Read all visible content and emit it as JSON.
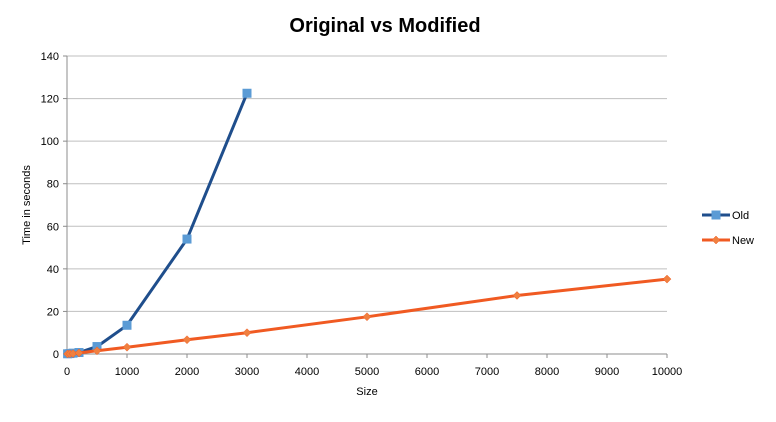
{
  "chart_data": {
    "type": "line",
    "title": "Original vs Modified",
    "xlabel": "Size",
    "ylabel": "Time in seconds",
    "xlim": [
      0,
      10000
    ],
    "ylim": [
      0,
      140
    ],
    "x_ticks": [
      0,
      1000,
      2000,
      3000,
      4000,
      5000,
      6000,
      7000,
      8000,
      9000,
      10000
    ],
    "y_ticks": [
      0,
      20,
      40,
      60,
      80,
      100,
      120,
      140
    ],
    "grid": "horizontal",
    "legend_position": "right",
    "series": [
      {
        "name": "Old",
        "color": "#1f4e8c",
        "marker_color": "#5b9bd5",
        "marker": "square",
        "points": [
          [
            10,
            0.1
          ],
          [
            50,
            0.2
          ],
          [
            100,
            0.4
          ],
          [
            200,
            0.7
          ],
          [
            500,
            3.5
          ],
          [
            1000,
            13.5
          ],
          [
            2000,
            54
          ],
          [
            3000,
            122.5
          ]
        ]
      },
      {
        "name": "New",
        "color": "#f05a22",
        "marker_color": "#f08040",
        "marker": "diamond",
        "points": [
          [
            10,
            0.05
          ],
          [
            50,
            0.1
          ],
          [
            100,
            0.2
          ],
          [
            200,
            0.5
          ],
          [
            500,
            1.5
          ],
          [
            1000,
            3.2
          ],
          [
            2000,
            6.7
          ],
          [
            3000,
            10
          ],
          [
            5000,
            17.5
          ],
          [
            7500,
            27.5
          ],
          [
            10000,
            35.2
          ]
        ]
      }
    ]
  }
}
